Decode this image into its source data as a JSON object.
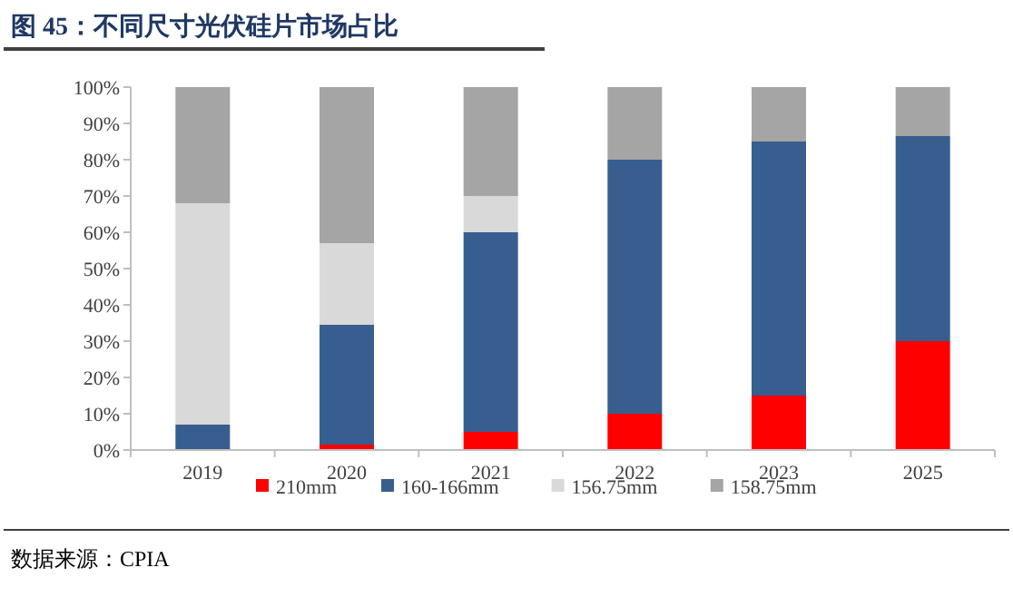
{
  "chart_data": {
    "type": "bar",
    "title": "图 45：不同尺寸光伏硅片市场占比",
    "categories": [
      "2019",
      "2020",
      "2021",
      "2022",
      "2023",
      "2025"
    ],
    "stacked": true,
    "series": [
      {
        "name": "210mm",
        "color": "#ff0000",
        "values": [
          0,
          1.5,
          5,
          10,
          15,
          30
        ]
      },
      {
        "name": "160-166mm",
        "color": "#375e8f",
        "values": [
          7,
          33,
          55,
          70,
          70,
          56.5
        ]
      },
      {
        "name": "156.75mm",
        "color": "#d9d9d9",
        "values": [
          61,
          22.5,
          10,
          0,
          0,
          0
        ]
      },
      {
        "name": "158.75mm",
        "color": "#a5a5a5",
        "values": [
          32,
          43,
          30,
          20,
          15,
          13.5
        ]
      }
    ],
    "ylim": [
      0,
      100
    ],
    "yticks": [
      {
        "value": 0,
        "label": "0%"
      },
      {
        "value": 10,
        "label": "10%"
      },
      {
        "value": 20,
        "label": "20%"
      },
      {
        "value": 30,
        "label": "30%"
      },
      {
        "value": 40,
        "label": "40%"
      },
      {
        "value": 50,
        "label": "50%"
      },
      {
        "value": 60,
        "label": "60%"
      },
      {
        "value": 70,
        "label": "70%"
      },
      {
        "value": 80,
        "label": "80%"
      },
      {
        "value": 90,
        "label": "90%"
      },
      {
        "value": 100,
        "label": "100%"
      }
    ],
    "grid": false,
    "legend": "bottom",
    "annotations": [
      "数据来源：CPIA"
    ]
  }
}
